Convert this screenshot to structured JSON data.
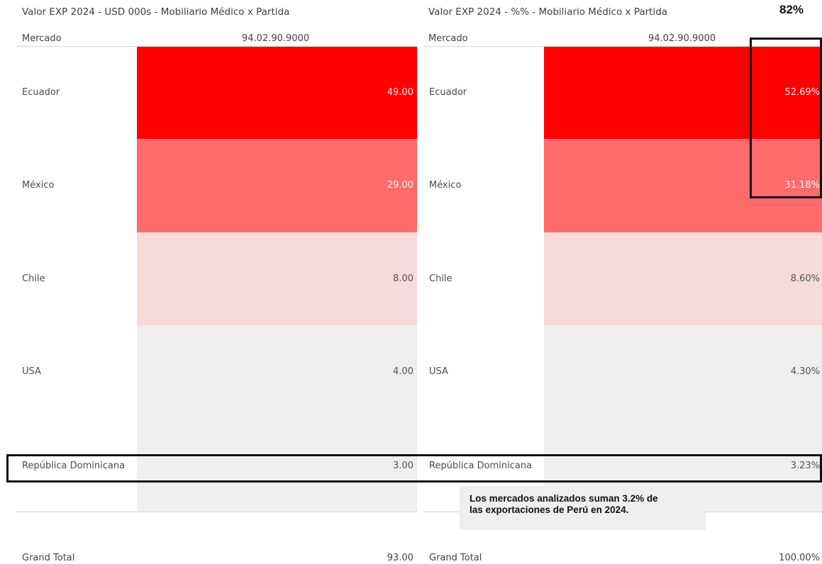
{
  "left_table": {
    "title": "Valor EXP 2024 - USD 000s - Mobiliario Médico x Partida",
    "row_header": "Mercado",
    "column_header": "94.02.90.9000",
    "grand_total_label": "Grand Total",
    "grand_total_value": "93.00"
  },
  "right_table": {
    "title": "Valor EXP 2024 - %% - Mobiliario Médico x Partida",
    "row_header": "Mercado",
    "column_header": "94.02.90.9000",
    "grand_total_label": "Grand Total",
    "grand_total_value": "100.00%"
  },
  "headline_percent": "82%",
  "note": {
    "line1": "Los mercados analizados suman 3.2% de",
    "line2": "las exportaciones de Perú en 2024."
  },
  "chart_data": [
    {
      "type": "table",
      "title": "Valor EXP 2024 - USD 000s - Mobiliario Médico x Partida",
      "row_header": "Mercado",
      "column": "94.02.90.9000",
      "rows": [
        {
          "label": "Ecuador",
          "value": 49.0,
          "display": "49.00",
          "color": "#ff0000"
        },
        {
          "label": "México",
          "value": 29.0,
          "display": "29.00",
          "color": "#ff6b6b"
        },
        {
          "label": "Chile",
          "value": 8.0,
          "display": "8.00",
          "color": "#f7dada"
        },
        {
          "label": "USA",
          "value": 4.0,
          "display": "4.00",
          "color": "#efeded"
        },
        {
          "label": "República Dominicana",
          "value": 3.0,
          "display": "3.00",
          "color": "#efefef"
        }
      ],
      "grand_total": 93.0
    },
    {
      "type": "table",
      "title": "Valor EXP 2024 - %% - Mobiliario Médico x Partida",
      "row_header": "Mercado",
      "column": "94.02.90.9000",
      "rows": [
        {
          "label": "Ecuador",
          "value": 52.69,
          "display": "52.69%",
          "color": "#ff0000"
        },
        {
          "label": "México",
          "value": 31.18,
          "display": "31.18%",
          "color": "#ff6b6b"
        },
        {
          "label": "Chile",
          "value": 8.6,
          "display": "8.60%",
          "color": "#f7dada"
        },
        {
          "label": "USA",
          "value": 4.3,
          "display": "4.30%",
          "color": "#efeded"
        },
        {
          "label": "República Dominicana",
          "value": 3.23,
          "display": "3.23%",
          "color": "#efefef"
        }
      ],
      "grand_total": 100.0
    }
  ],
  "colors": {
    "highlight_box": "#111111",
    "white_value_text": "#ffffff",
    "dark_value_text": "#555555"
  }
}
